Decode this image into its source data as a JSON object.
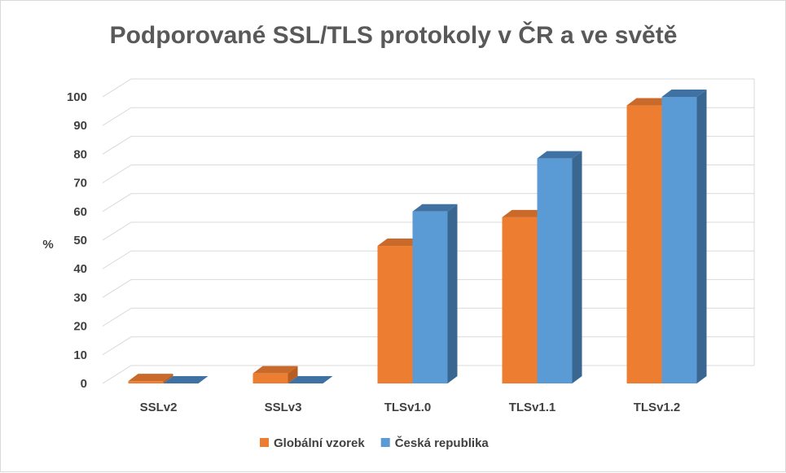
{
  "chart_data": {
    "type": "bar",
    "title": "Podporované SSL/TLS protokoly v ČR a ve světě",
    "ylabel": "%",
    "xlabel": "",
    "ylim": [
      0,
      100
    ],
    "yticks": [
      "0",
      "10",
      "20",
      "30",
      "40",
      "50",
      "60",
      "70",
      "80",
      "90",
      "100"
    ],
    "categories": [
      "SSLv2",
      "SSLv3",
      "TLSv1.0",
      "TLSv1.1",
      "TLSv1.2"
    ],
    "series": [
      {
        "name": "Globální vzorek",
        "values": [
          0.8,
          3.5,
          48,
          58,
          97
        ],
        "color": "#ED7D31",
        "side_color": "#B85E22",
        "top_color": "#C9692A"
      },
      {
        "name": "Česká republika",
        "values": [
          0,
          0,
          60,
          78.5,
          100
        ],
        "color": "#5B9BD5",
        "side_color": "#3A6791",
        "top_color": "#3F72A3"
      }
    ],
    "grid": true,
    "legend": "bottom",
    "style": "3d-column"
  }
}
